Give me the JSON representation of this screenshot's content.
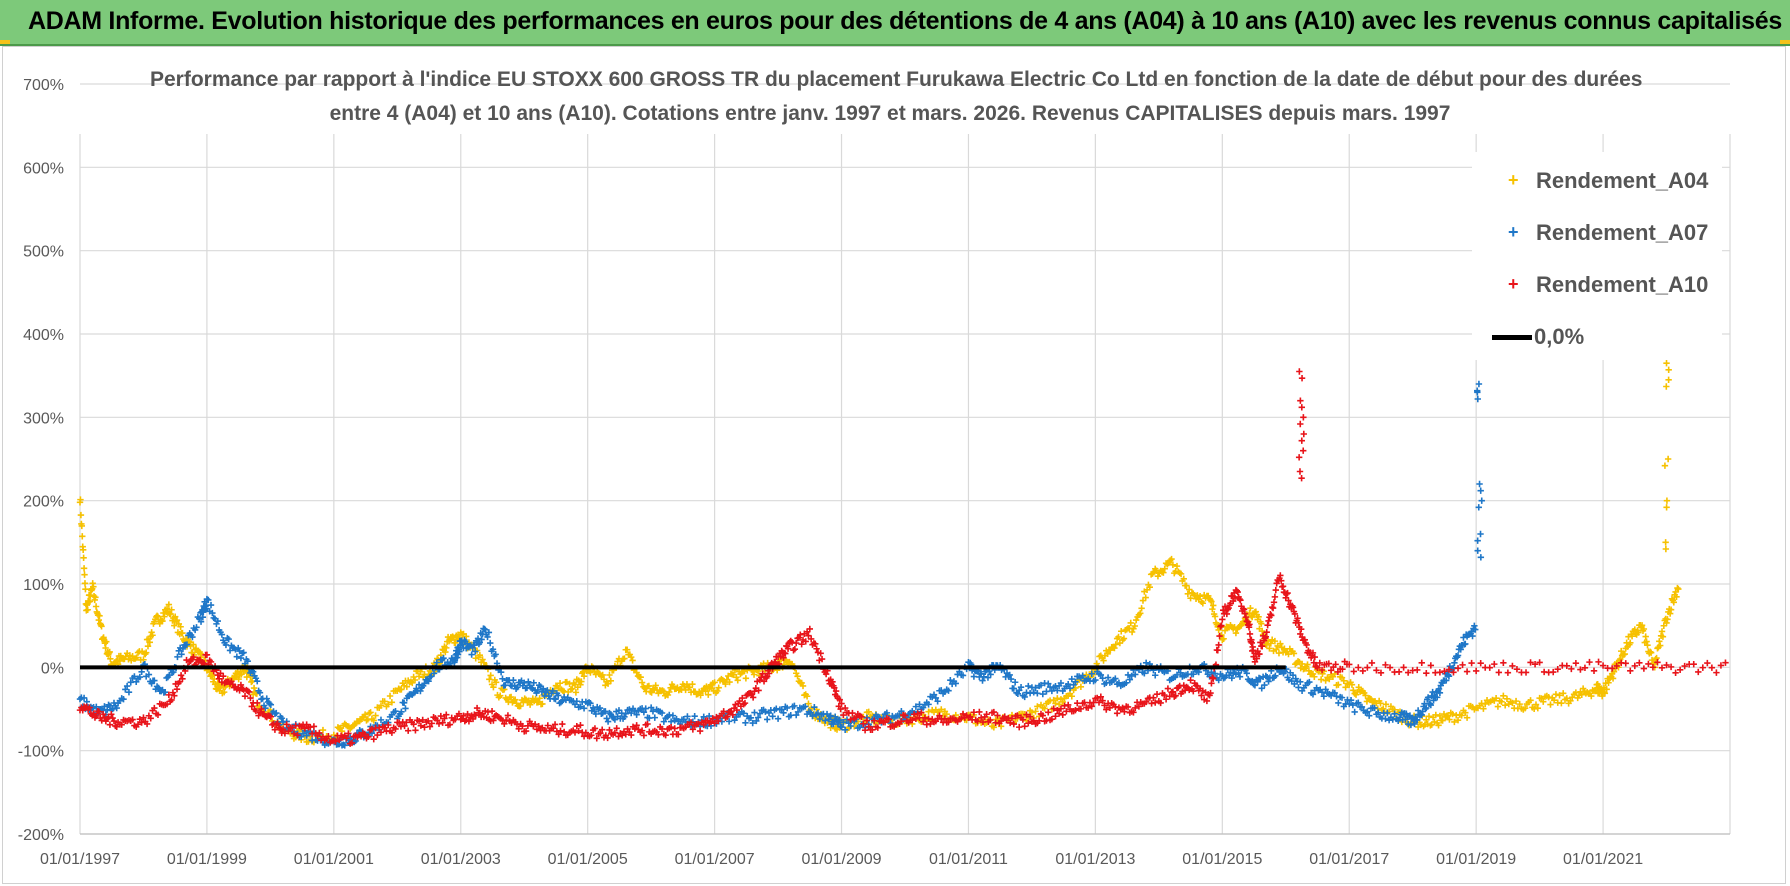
{
  "banner": {
    "title": "ADAM Informe. Evolution historique des performances en euros pour des détentions de 4 ans (A04) à 10 ans (A10) avec les revenus connus capitalisés"
  },
  "colors": {
    "banner_bg": "#7dc97a",
    "a04": "#f6c100",
    "a07": "#1f77c8",
    "a10": "#e8141a",
    "zero": "#000000",
    "grid": "#d9d9d9"
  },
  "chart_data": {
    "type": "scatter",
    "title_line1": "Performance par rapport à l'indice EU STOXX 600 GROSS TR  du placement Furukawa Electric Co Ltd en fonction de la date de début pour des durées",
    "title_line2": "entre 4 (A04) et 10 ans (A10). Cotations entre janv. 1997 et mars. 2026. Revenus CAPITALISES depuis mars. 1997",
    "xlabel": "",
    "ylabel": "",
    "x_range": [
      1997.0,
      2023.0
    ],
    "ylim": [
      -200,
      700
    ],
    "y_ticks": [
      "700%",
      "600%",
      "500%",
      "400%",
      "300%",
      "200%",
      "100%",
      "0%",
      "-100%",
      "-200%"
    ],
    "y_tick_values": [
      700,
      600,
      500,
      400,
      300,
      200,
      100,
      0,
      -100,
      -200
    ],
    "x_ticks": [
      "01/01/1997",
      "01/01/1999",
      "01/01/2001",
      "01/01/2003",
      "01/01/2005",
      "01/01/2007",
      "01/01/2009",
      "01/01/2011",
      "01/01/2013",
      "01/01/2015",
      "01/01/2017",
      "01/01/2019",
      "01/01/2021"
    ],
    "x_tick_values": [
      1997,
      1999,
      2001,
      2003,
      2005,
      2007,
      2009,
      2011,
      2013,
      2015,
      2017,
      2019,
      2021
    ],
    "legend": {
      "position": "top-right",
      "items": [
        {
          "label": "Rendement_A04",
          "marker": "+"
        },
        {
          "label": "Rendement_A07",
          "marker": "+"
        },
        {
          "label": "Rendement_A10",
          "marker": "+"
        },
        {
          "label": "0,0%",
          "marker": "line"
        }
      ]
    },
    "series": [
      {
        "name": "Rendement_A04",
        "x": [
          1997.0,
          1997.1,
          1997.2,
          1997.35,
          1997.5,
          1997.7,
          1998.0,
          1998.2,
          1998.4,
          1998.6,
          1998.8,
          1999.0,
          1999.2,
          1999.4,
          1999.6,
          1999.8,
          2000.2,
          2000.6,
          2001.0,
          2001.3,
          2001.6,
          2002.0,
          2002.3,
          2002.6,
          2002.8,
          2003.0,
          2003.3,
          2003.6,
          2003.9,
          2004.2,
          2004.5,
          2004.8,
          2005.0,
          2005.3,
          2005.6,
          2005.9,
          2006.2,
          2006.5,
          2006.8,
          2007.0,
          2007.3,
          2007.6,
          2007.9,
          2008.2,
          2008.5,
          2008.8,
          2009.0,
          2009.4,
          2009.8,
          2010.2,
          2010.6,
          2011.0,
          2011.4,
          2011.8,
          2012.2,
          2012.6,
          2013.0,
          2013.3,
          2013.6,
          2013.9,
          2014.2,
          2014.5,
          2014.8,
          2015.0,
          2015.3,
          2015.5,
          2015.7,
          2016.0,
          2016.3,
          2016.6,
          2017.0,
          2017.3,
          2017.6,
          2018.0,
          2018.3,
          2018.6,
          2019.0,
          2019.4,
          2019.8,
          2020.2,
          2020.6,
          2020.9,
          2021.0,
          2021.2,
          2021.4,
          2021.6,
          2021.8,
          2022.0,
          2022.2
        ],
        "values": [
          205,
          70,
          95,
          40,
          5,
          10,
          15,
          55,
          70,
          40,
          20,
          0,
          -30,
          -15,
          0,
          -40,
          -75,
          -85,
          -80,
          -70,
          -60,
          -30,
          -10,
          0,
          30,
          40,
          10,
          -30,
          -40,
          -45,
          -20,
          -25,
          0,
          -20,
          20,
          -25,
          -30,
          -20,
          -30,
          -25,
          -10,
          -5,
          0,
          10,
          -50,
          -65,
          -70,
          -60,
          -65,
          -60,
          -55,
          -60,
          -70,
          -60,
          -50,
          -30,
          0,
          30,
          50,
          110,
          125,
          90,
          80,
          40,
          50,
          70,
          30,
          20,
          0,
          -10,
          -20,
          -40,
          -50,
          -65,
          -65,
          -60,
          -50,
          -40,
          -45,
          -40,
          -35,
          -25,
          -30,
          0,
          30,
          50,
          0,
          60,
          100
        ],
        "spikes": [
          {
            "x": 2022.0,
            "values": [
              150,
              200,
              250,
              345,
              365
            ]
          }
        ]
      },
      {
        "name": "Rendement_A07",
        "x": [
          1997.0,
          1997.3,
          1997.6,
          1998.0,
          1998.3,
          1998.6,
          1998.9,
          1999.0,
          1999.3,
          1999.6,
          1999.9,
          2000.2,
          2000.6,
          2001.0,
          2001.3,
          2001.6,
          2002.0,
          2002.3,
          2002.6,
          2002.9,
          2003.0,
          2003.2,
          2003.4,
          2003.7,
          2004.0,
          2004.3,
          2004.6,
          2005.0,
          2005.3,
          2005.6,
          2006.0,
          2006.4,
          2006.8,
          2007.2,
          2007.6,
          2008.0,
          2008.4,
          2008.8,
          2009.0,
          2009.4,
          2009.8,
          2010.2,
          2010.6,
          2011.0,
          2011.2,
          2011.5,
          2011.8,
          2012.2,
          2012.6,
          2013.0,
          2013.4,
          2013.8,
          2014.2,
          2014.6,
          2015.0,
          2015.3,
          2015.6,
          2015.9,
          2016.2,
          2016.6,
          2017.0,
          2017.4,
          2017.8,
          2018.0,
          2018.2,
          2018.4,
          2018.6,
          2018.8,
          2019.0
        ],
        "values": [
          -40,
          -55,
          -45,
          0,
          -30,
          20,
          60,
          80,
          30,
          10,
          -40,
          -70,
          -80,
          -90,
          -85,
          -75,
          -55,
          -30,
          0,
          10,
          30,
          20,
          45,
          -20,
          -20,
          -30,
          -40,
          -45,
          -60,
          -55,
          -55,
          -65,
          -65,
          -60,
          -60,
          -55,
          -50,
          -60,
          -70,
          -65,
          -60,
          -50,
          -30,
          0,
          -10,
          0,
          -30,
          -25,
          -20,
          -10,
          -20,
          0,
          -10,
          0,
          -10,
          -5,
          -20,
          0,
          -20,
          -30,
          -45,
          -55,
          -60,
          -65,
          -45,
          -30,
          0,
          30,
          50
        ],
        "spikes": [
          {
            "x": 2019.05,
            "values": [
              140,
              160,
              200,
              220,
              330,
              340
            ]
          }
        ]
      },
      {
        "name": "Rendement_A10",
        "x": [
          1997.0,
          1997.3,
          1997.6,
          1998.0,
          1998.4,
          1998.7,
          1999.0,
          1999.3,
          1999.6,
          1999.9,
          2000.2,
          2000.6,
          2001.0,
          2001.4,
          2001.8,
          2002.2,
          2002.6,
          2003.0,
          2003.3,
          2003.6,
          2004.0,
          2004.4,
          2004.8,
          2005.2,
          2005.6,
          2006.0,
          2006.4,
          2006.8,
          2007.2,
          2007.5,
          2007.8,
          2008.0,
          2008.2,
          2008.5,
          2008.8,
          2009.0,
          2009.4,
          2009.8,
          2010.2,
          2010.6,
          2011.0,
          2011.4,
          2011.8,
          2012.2,
          2012.6,
          2013.0,
          2013.4,
          2013.8,
          2014.2,
          2014.5,
          2014.8,
          2015.0,
          2015.2,
          2015.4,
          2015.5,
          2015.7,
          2015.9,
          2016.1,
          2016.3,
          2016.5,
          2017.0,
          2018.0,
          2019.0,
          2020.0,
          2021.0,
          2022.0,
          2023.0
        ],
        "values": [
          -45,
          -60,
          -65,
          -65,
          -40,
          5,
          10,
          -20,
          -30,
          -60,
          -75,
          -75,
          -88,
          -85,
          -75,
          -70,
          -65,
          -60,
          -55,
          -60,
          -70,
          -75,
          -75,
          -80,
          -75,
          -75,
          -75,
          -70,
          -55,
          -40,
          -10,
          10,
          25,
          40,
          -10,
          -50,
          -70,
          -65,
          -60,
          -65,
          -60,
          -60,
          -65,
          -60,
          -50,
          -40,
          -50,
          -45,
          -30,
          -20,
          -40,
          60,
          90,
          60,
          10,
          40,
          110,
          70,
          30,
          0,
          0,
          0,
          0,
          0,
          0,
          0,
          0
        ],
        "spikes": [
          {
            "x": 2016.25,
            "values": [
              235,
              260,
              280,
              300,
              320,
              355
            ]
          }
        ]
      }
    ],
    "zero_line": {
      "label": "0,0%",
      "value": 0
    }
  }
}
